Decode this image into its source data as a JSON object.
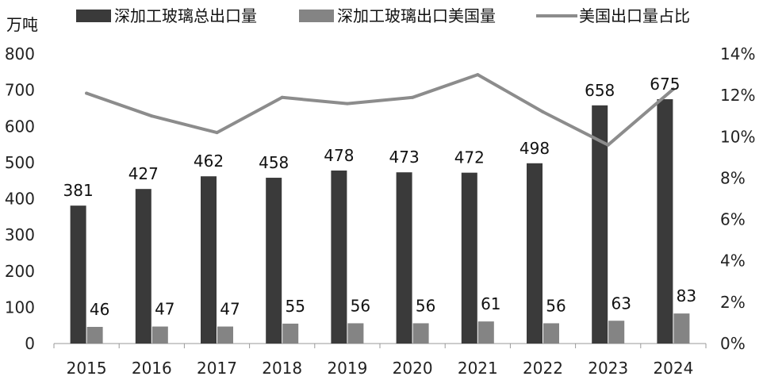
{
  "chart_data": {
    "type": "bar",
    "unit_label": "万吨",
    "categories": [
      "2015",
      "2016",
      "2017",
      "2018",
      "2019",
      "2020",
      "2021",
      "2022",
      "2023",
      "2024"
    ],
    "series": [
      {
        "name": "深加工玻璃总出口量",
        "type": "bar",
        "axis": "left",
        "color": "#3a3a3a",
        "values": [
          381,
          427,
          462,
          458,
          478,
          473,
          472,
          498,
          658,
          675
        ]
      },
      {
        "name": "深加工玻璃出口美国量",
        "type": "bar",
        "axis": "left",
        "color": "#848484",
        "values": [
          46,
          47,
          47,
          55,
          56,
          56,
          61,
          56,
          63,
          83
        ]
      },
      {
        "name": "美国出口量占比",
        "type": "line",
        "axis": "right",
        "color": "#8c8c8c",
        "values": [
          12.1,
          11.0,
          10.2,
          11.9,
          11.6,
          11.9,
          13.0,
          11.2,
          9.6,
          12.3
        ]
      }
    ],
    "left_axis": {
      "ylim": [
        0,
        800
      ],
      "ticks": [
        "0",
        "100",
        "200",
        "300",
        "400",
        "500",
        "600",
        "700",
        "800"
      ]
    },
    "right_axis": {
      "ylim": [
        0,
        14
      ],
      "ticks": [
        "0%",
        "2%",
        "4%",
        "6%",
        "8%",
        "10%",
        "12%",
        "14%"
      ]
    },
    "legend_position": "top",
    "grid": false
  }
}
